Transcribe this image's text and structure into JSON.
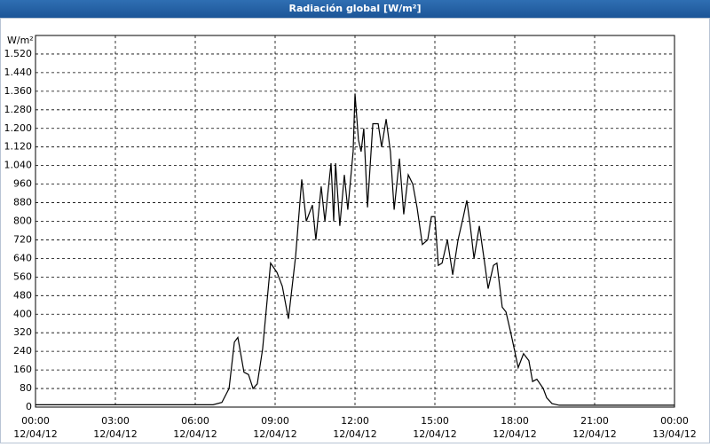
{
  "window_title": "Radiación global [W/m²]",
  "chart_data": {
    "type": "line",
    "ylabel": "W/m²",
    "ylim": [
      0,
      1600
    ],
    "yticks": [
      0,
      80,
      160,
      240,
      320,
      400,
      480,
      560,
      640,
      720,
      800,
      880,
      960,
      {
        "value": 1040,
        "label": "1.040"
      },
      {
        "value": 1120,
        "label": "1.120"
      },
      {
        "value": 1200,
        "label": "1.200"
      },
      {
        "value": 1280,
        "label": "1.280"
      },
      {
        "value": 1360,
        "label": "1.360"
      },
      {
        "value": 1440,
        "label": "1.440"
      },
      {
        "value": 1520,
        "label": "1.520"
      }
    ],
    "xlim": [
      0,
      24
    ],
    "xticks": [
      {
        "value": 0,
        "label": "00:00",
        "date": "12/04/12"
      },
      {
        "value": 3,
        "label": "03:00",
        "date": "12/04/12"
      },
      {
        "value": 6,
        "label": "06:00",
        "date": "12/04/12"
      },
      {
        "value": 9,
        "label": "09:00",
        "date": "12/04/12"
      },
      {
        "value": 12,
        "label": "12:00",
        "date": "12/04/12"
      },
      {
        "value": 15,
        "label": "15:00",
        "date": "12/04/12"
      },
      {
        "value": 18,
        "label": "18:00",
        "date": "12/04/12"
      },
      {
        "value": 21,
        "label": "21:00",
        "date": "12/04/12"
      },
      {
        "value": 24,
        "label": "00:00",
        "date": "13/04/12"
      }
    ],
    "grid": true,
    "color": "#000000",
    "x": [
      0,
      6.67,
      7,
      7.27,
      7.47,
      7.6,
      7.83,
      8,
      8.17,
      8.33,
      8.53,
      8.83,
      9.07,
      9.27,
      9.5,
      9.77,
      10,
      10.17,
      10.4,
      10.53,
      10.73,
      10.87,
      11.1,
      11.2,
      11.27,
      11.43,
      11.6,
      11.73,
      11.93,
      12,
      12.13,
      12.23,
      12.33,
      12.47,
      12.67,
      12.87,
      13,
      13.17,
      13.33,
      13.47,
      13.67,
      13.83,
      14,
      14.17,
      14.33,
      14.53,
      14.73,
      14.87,
      15,
      15.13,
      15.27,
      15.47,
      15.67,
      15.87,
      16.07,
      16.2,
      16.33,
      16.47,
      16.67,
      16.87,
      17,
      17.2,
      17.33,
      17.53,
      17.67,
      17.87,
      18.13,
      18.33,
      18.53,
      18.67,
      18.83,
      19.07,
      19.2,
      19.4,
      19.67,
      24
    ],
    "values": [
      10,
      10,
      20,
      80,
      280,
      300,
      150,
      140,
      80,
      100,
      250,
      620,
      580,
      520,
      380,
      650,
      980,
      800,
      870,
      720,
      950,
      800,
      1050,
      800,
      1050,
      780,
      1000,
      850,
      1100,
      1350,
      1150,
      1100,
      1200,
      860,
      1220,
      1220,
      1120,
      1240,
      1100,
      850,
      1070,
      830,
      1000,
      960,
      860,
      700,
      720,
      820,
      820,
      610,
      620,
      720,
      570,
      720,
      820,
      890,
      780,
      640,
      780,
      620,
      510,
      610,
      620,
      430,
      410,
      310,
      170,
      230,
      200,
      110,
      120,
      80,
      40,
      15,
      8,
      8
    ]
  }
}
